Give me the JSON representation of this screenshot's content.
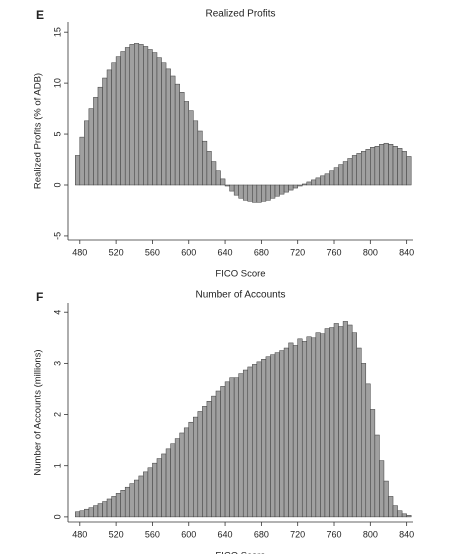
{
  "chart_data": [
    {
      "type": "histogram",
      "panel": "E",
      "title": "Realized Profits",
      "xlabel": "FICO Score",
      "ylabel": "Realized Profits (% of ADB)",
      "bins": [
        475,
        480,
        485,
        490,
        495,
        500,
        505,
        510,
        515,
        520,
        525,
        530,
        535,
        540,
        545,
        550,
        555,
        560,
        565,
        570,
        575,
        580,
        585,
        590,
        595,
        600,
        605,
        610,
        615,
        620,
        625,
        630,
        635,
        640,
        645,
        650,
        655,
        660,
        665,
        670,
        675,
        680,
        685,
        690,
        695,
        700,
        705,
        710,
        715,
        720,
        725,
        730,
        735,
        740,
        745,
        750,
        755,
        760,
        765,
        770,
        775,
        780,
        785,
        790,
        795,
        800,
        805,
        810,
        815,
        820,
        825,
        830,
        835,
        840,
        845
      ],
      "values": [
        2.9,
        4.7,
        6.3,
        7.5,
        8.6,
        9.6,
        10.5,
        11.3,
        12.0,
        12.6,
        13.1,
        13.5,
        13.8,
        13.9,
        13.8,
        13.6,
        13.3,
        13.0,
        12.5,
        12.0,
        11.4,
        10.7,
        9.9,
        9.1,
        8.2,
        7.3,
        6.3,
        5.3,
        4.3,
        3.3,
        2.3,
        1.4,
        0.6,
        -0.1,
        -0.6,
        -1.0,
        -1.3,
        -1.5,
        -1.6,
        -1.7,
        -1.7,
        -1.6,
        -1.5,
        -1.3,
        -1.1,
        -0.9,
        -0.7,
        -0.5,
        -0.3,
        -0.1,
        0.1,
        0.3,
        0.5,
        0.7,
        0.9,
        1.1,
        1.4,
        1.7,
        2.0,
        2.3,
        2.6,
        2.9,
        3.1,
        3.3,
        3.5,
        3.7,
        3.8,
        4.0,
        4.1,
        4.0,
        3.8,
        3.6,
        3.3,
        2.8
      ],
      "color": "#a0a0a0",
      "xlim": [
        467,
        847
      ],
      "xticks": [
        480,
        520,
        560,
        600,
        640,
        680,
        720,
        760,
        800,
        840
      ],
      "ylim": [
        -5.4,
        16
      ],
      "yticks": [
        -5,
        0,
        5,
        10,
        15
      ]
    },
    {
      "type": "histogram",
      "panel": "F",
      "title": "Number of Accounts",
      "xlabel": "FICO Score",
      "ylabel": "Number of Accounts (millions)",
      "bins": [
        475,
        480,
        485,
        490,
        495,
        500,
        505,
        510,
        515,
        520,
        525,
        530,
        535,
        540,
        545,
        550,
        555,
        560,
        565,
        570,
        575,
        580,
        585,
        590,
        595,
        600,
        605,
        610,
        615,
        620,
        625,
        630,
        635,
        640,
        645,
        650,
        655,
        660,
        665,
        670,
        675,
        680,
        685,
        690,
        695,
        700,
        705,
        710,
        715,
        720,
        725,
        730,
        735,
        740,
        745,
        750,
        755,
        760,
        765,
        770,
        775,
        780,
        785,
        790,
        795,
        800,
        805,
        810,
        815,
        820,
        825,
        830,
        835,
        840,
        845
      ],
      "values": [
        0.1,
        0.12,
        0.15,
        0.18,
        0.22,
        0.26,
        0.3,
        0.35,
        0.4,
        0.46,
        0.52,
        0.58,
        0.65,
        0.72,
        0.8,
        0.88,
        0.96,
        1.05,
        1.14,
        1.23,
        1.33,
        1.43,
        1.53,
        1.64,
        1.74,
        1.85,
        1.95,
        2.06,
        2.16,
        2.26,
        2.36,
        2.46,
        2.55,
        2.64,
        2.72,
        2.72,
        2.8,
        2.87,
        2.93,
        2.98,
        3.03,
        3.08,
        3.13,
        3.17,
        3.21,
        3.25,
        3.3,
        3.4,
        3.35,
        3.48,
        3.43,
        3.52,
        3.5,
        3.6,
        3.58,
        3.68,
        3.7,
        3.78,
        3.72,
        3.82,
        3.75,
        3.6,
        3.3,
        3.0,
        2.6,
        2.1,
        1.6,
        1.1,
        0.7,
        0.4,
        0.22,
        0.12,
        0.06,
        0.03
      ],
      "color": "#a0a0a0",
      "xlim": [
        467,
        847
      ],
      "xticks": [
        480,
        520,
        560,
        600,
        640,
        680,
        720,
        760,
        800,
        840
      ],
      "ylim": [
        -0.1,
        4.18
      ],
      "yticks": [
        0,
        1,
        2,
        3,
        4
      ]
    }
  ]
}
